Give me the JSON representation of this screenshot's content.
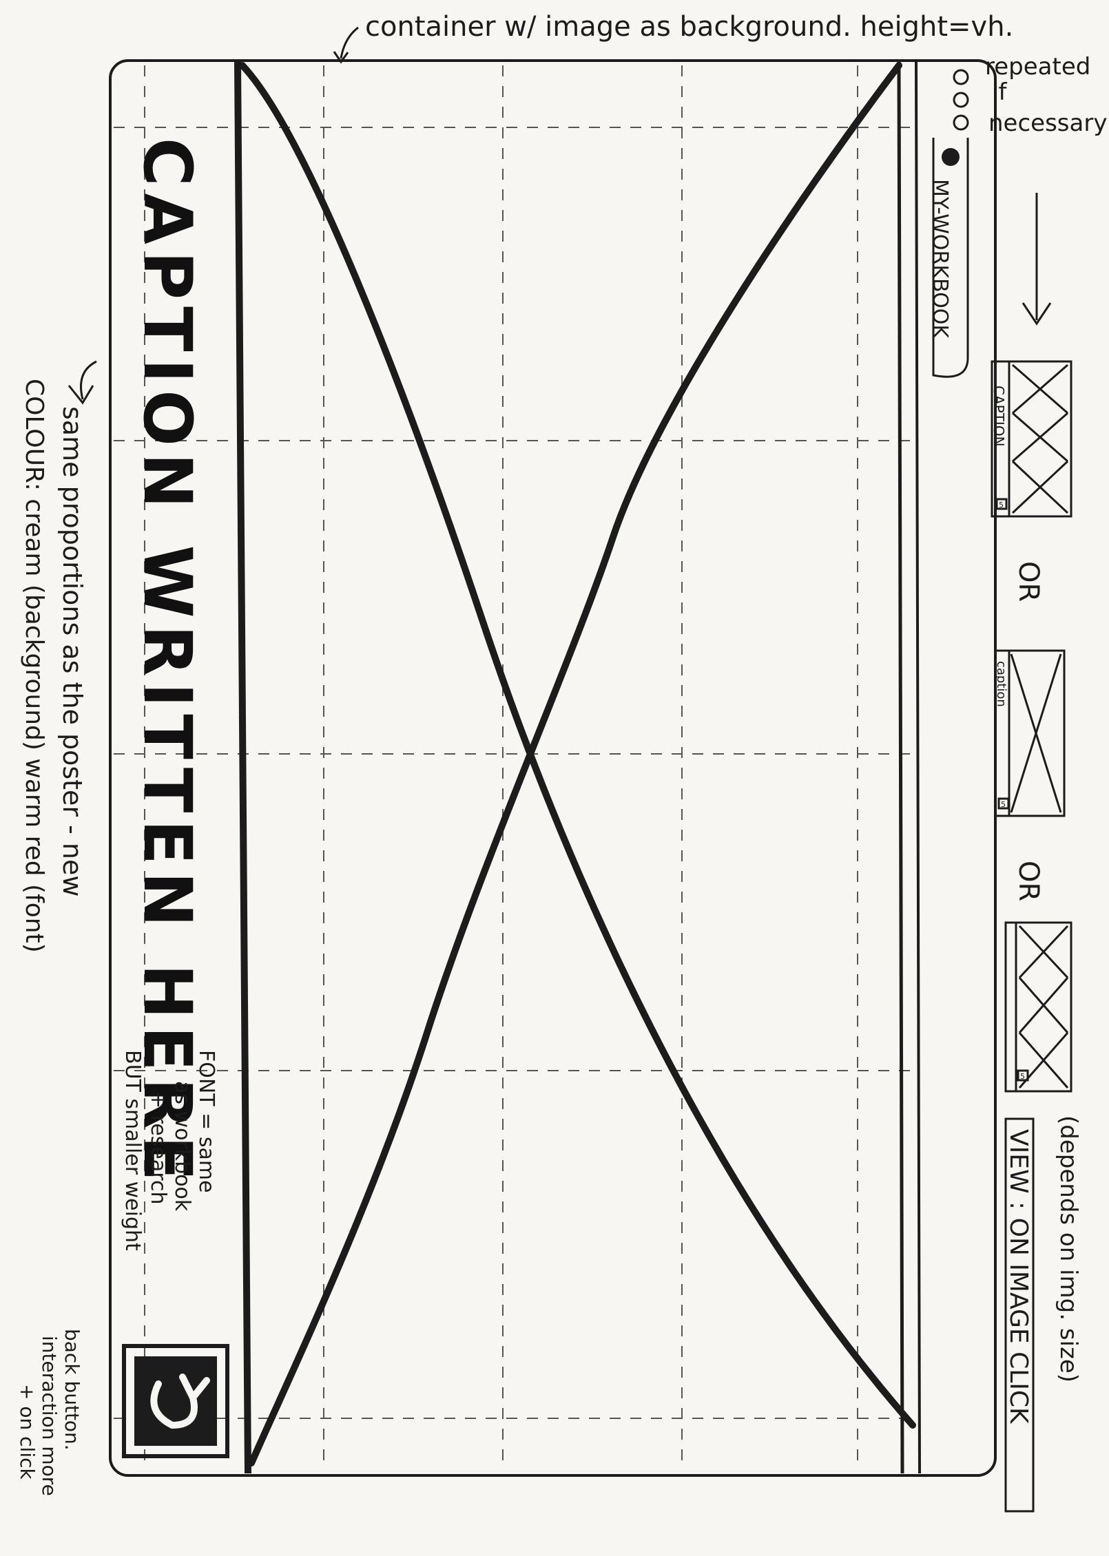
{
  "annotations": {
    "container_note": "container w/ image as background. height=vh.",
    "repeated_note_1": "repeated",
    "repeated_note_2": "if",
    "repeated_note_3": "necessary",
    "proportions_note_1": "same proportions as the poster - new",
    "proportions_note_2": "COLOUR: cream (background) warm red (font)",
    "font_note_1": "FONT = same",
    "font_note_2": "as workbook",
    "font_note_3": "+ research",
    "font_note_4": "BUT smaller weight",
    "back_note_1": "back button.",
    "back_note_2": "interaction more",
    "back_note_3": "+ on click",
    "depends_note": "(depends on img. size)",
    "or_1": "OR",
    "or_2": "OR"
  },
  "page": {
    "caption": "CAPTION WRITTEN HERE",
    "header_tab": "MY-WORKBOOK",
    "window_dots": "ooo",
    "back_icon": "back-arrow-icon",
    "view_label": "VIEW : ON IMAGE CLICK"
  },
  "thumbnails": [
    {
      "caption": "CAPTION",
      "badge": "5"
    },
    {
      "caption": "caption",
      "badge": "5"
    },
    {
      "caption": "",
      "badge": "5"
    }
  ]
}
